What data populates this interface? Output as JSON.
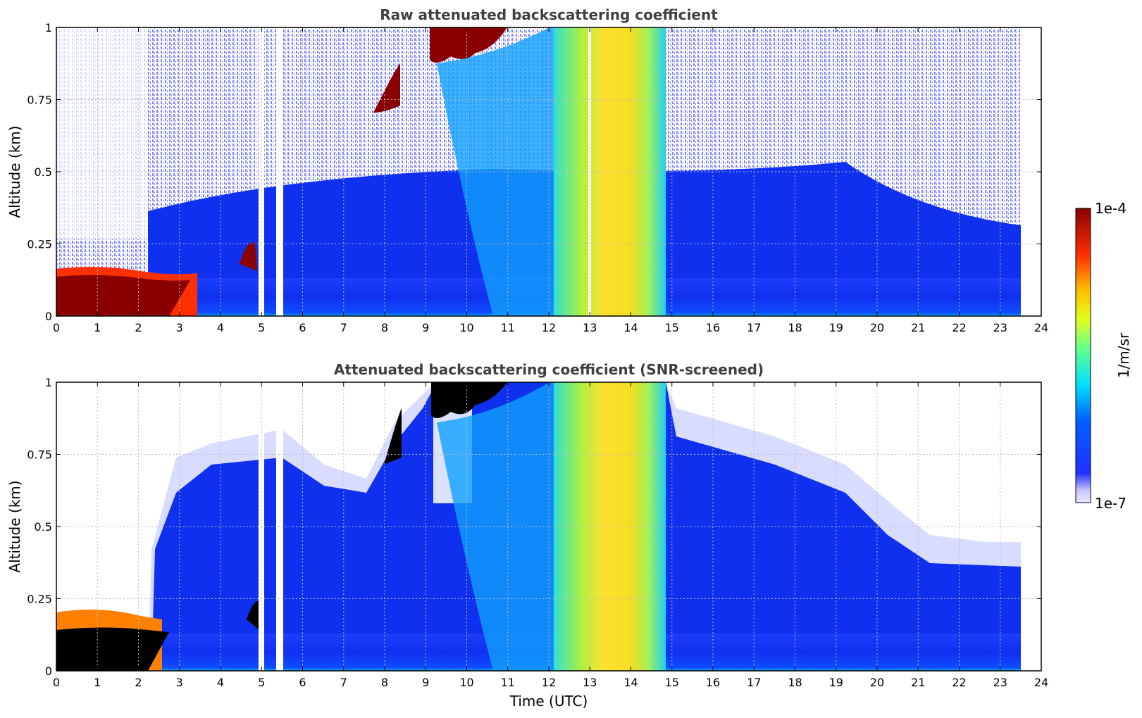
{
  "chart_data": [
    {
      "type": "heatmap",
      "title": "Raw attenuated backscattering coefficient",
      "xlabel": "",
      "ylabel": "Altitude (km)",
      "xlim": [
        0,
        24
      ],
      "ylim": [
        0,
        1
      ],
      "x_ticks": [
        "0",
        "1",
        "2",
        "3",
        "4",
        "5",
        "6",
        "7",
        "8",
        "9",
        "10",
        "11",
        "12",
        "13",
        "14",
        "15",
        "16",
        "17",
        "18",
        "19",
        "20",
        "21",
        "22",
        "23",
        "24"
      ],
      "y_ticks": [
        "0",
        "0.25",
        "0.5",
        "0.75",
        "1"
      ],
      "grid": true,
      "data_end_hour": 23.5,
      "features": [
        {
          "label": "low layer",
          "x": [
            0,
            2.7
          ],
          "y": [
            0,
            0.15
          ],
          "level": "high"
        },
        {
          "label": "cloud top",
          "x": [
            9.3,
            10.9
          ],
          "y": [
            0.85,
            1.0
          ],
          "level": "high"
        },
        {
          "label": "dense column",
          "x": [
            12.2,
            14.9
          ],
          "y": [
            0,
            1.0
          ],
          "level": "medium"
        },
        {
          "label": "boundary layer",
          "x": [
            2.0,
            23.5
          ],
          "y": [
            0,
            0.45
          ],
          "level": "low"
        }
      ],
      "data_gaps_hours": [
        4.95,
        5.0,
        5.4,
        5.45
      ]
    },
    {
      "type": "heatmap",
      "title": "Attenuated backscattering coefficient (SNR-screened)",
      "xlabel": "Time (UTC)",
      "ylabel": "Altitude (km)",
      "xlim": [
        0,
        24
      ],
      "ylim": [
        0,
        1
      ],
      "x_ticks": [
        "0",
        "1",
        "2",
        "3",
        "4",
        "5",
        "6",
        "7",
        "8",
        "9",
        "10",
        "11",
        "12",
        "13",
        "14",
        "15",
        "16",
        "17",
        "18",
        "19",
        "20",
        "21",
        "22",
        "23",
        "24"
      ],
      "y_ticks": [
        "0",
        "0.25",
        "0.5",
        "0.75",
        "1"
      ],
      "grid": true,
      "data_end_hour": 23.5,
      "features": [
        {
          "label": "saturated low layer",
          "x": [
            0,
            2.5
          ],
          "y": [
            0,
            0.15
          ],
          "level": "saturated"
        },
        {
          "label": "saturated cloud top",
          "x": [
            9.1,
            11.0
          ],
          "y": [
            0.85,
            1.0
          ],
          "level": "saturated"
        },
        {
          "label": "dense column",
          "x": [
            12.2,
            14.9
          ],
          "y": [
            0,
            1.0
          ],
          "level": "medium"
        },
        {
          "label": "screened aerosol layer",
          "x": [
            2.2,
            23.5
          ],
          "y": [
            0,
            0.75
          ],
          "level": "low"
        }
      ]
    }
  ],
  "colorbar": {
    "label": "1/m/sr",
    "max_label": "1e-4",
    "min_label": "1e-7",
    "colormap": "jet",
    "min_value": 1e-07,
    "max_value": 0.0001
  },
  "colors": {
    "low": "#1030f0",
    "light": "#d8dcff",
    "high": "#8a0000",
    "saturated": "#000000",
    "grid": "#bbbbbb"
  }
}
